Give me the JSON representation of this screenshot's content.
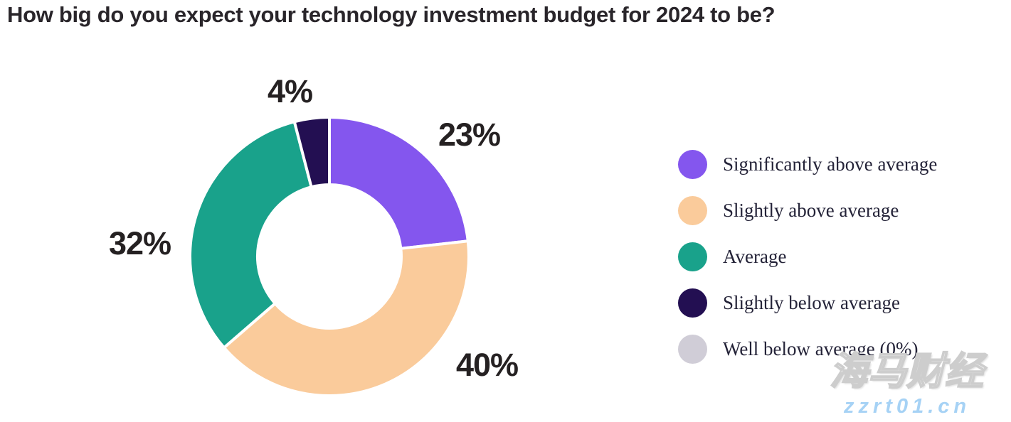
{
  "title": "How big do you expect your technology investment budget for 2024 to be?",
  "chart_data": {
    "type": "pie",
    "subtype": "donut",
    "title": "How big do you expect your technology investment budget for 2024 to be?",
    "start_angle_deg": 0,
    "direction": "clockwise",
    "legend_position": "right",
    "slices": [
      {
        "label": "Significantly above average",
        "value": 23,
        "display": "23%",
        "color": "#8456EE"
      },
      {
        "label": "Slightly above average",
        "value": 40,
        "display": "40%",
        "color": "#FACB9B"
      },
      {
        "label": "Average",
        "value": 32,
        "display": "32%",
        "color": "#19A28B"
      },
      {
        "label": "Slightly below average",
        "value": 4,
        "display": "4%",
        "color": "#230F52"
      },
      {
        "label": "Well below average (0%)",
        "value": 0,
        "display": "0%",
        "color": "#D0CDD7"
      }
    ]
  },
  "legend": {
    "items": [
      {
        "label": "Significantly above average",
        "color": "#8456EE"
      },
      {
        "label": "Slightly above average",
        "color": "#FACB9B"
      },
      {
        "label": "Average",
        "color": "#19A28B"
      },
      {
        "label": "Slightly below average",
        "color": "#230F52"
      },
      {
        "label": "Well below average (0%)",
        "color": "#D0CDD7"
      }
    ]
  },
  "watermark": {
    "brand": "海马财经",
    "url": "zzrt01.cn",
    "url_color": "#A6D2F5"
  }
}
